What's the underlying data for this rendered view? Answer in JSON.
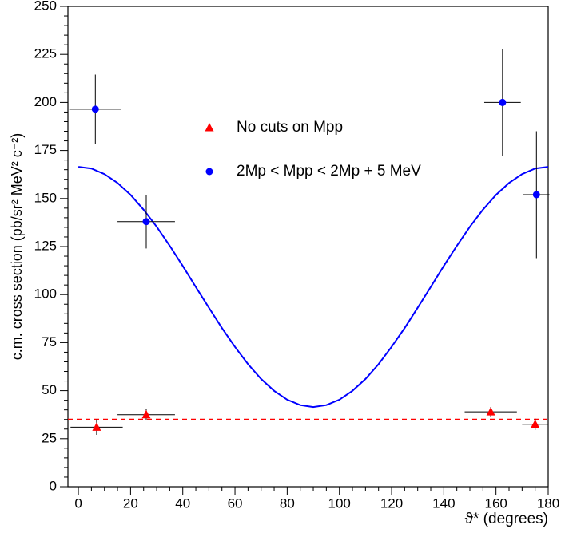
{
  "chart_data": {
    "type": "scatter",
    "xlabel": "ϑ* (degrees)",
    "ylabel": "c.m. cross section (pb/sr² MeV² c⁻²)",
    "xlim": [
      -4,
      180
    ],
    "ylim": [
      0,
      250
    ],
    "xticks": [
      0,
      20,
      40,
      60,
      80,
      100,
      120,
      140,
      160,
      180
    ],
    "yticks": [
      0,
      25,
      50,
      75,
      100,
      125,
      150,
      175,
      200,
      225,
      250
    ],
    "series": [
      {
        "name": "No cuts on Mpp",
        "color": "#ff0000",
        "marker": "triangle",
        "x": [
          7,
          26,
          158,
          175
        ],
        "values": [
          31,
          37.5,
          39,
          32.5
        ],
        "xerr": [
          10,
          11,
          10,
          5
        ],
        "yerr": [
          4,
          3,
          2.5,
          3
        ]
      },
      {
        "name": "2Mp < Mpp < 2Mp + 5 MeV",
        "color": "#0000ff",
        "marker": "circle",
        "x": [
          6.5,
          26,
          162.5,
          175.5
        ],
        "values": [
          196.5,
          138,
          200,
          152
        ],
        "xerr": [
          10,
          11,
          7,
          5
        ],
        "yerr": [
          18,
          14,
          28,
          33
        ]
      }
    ],
    "curves": [
      {
        "color": "#0000ff",
        "style": "solid",
        "x": [
          0,
          5,
          10,
          15,
          20,
          25,
          30,
          35,
          40,
          45,
          50,
          55,
          60,
          65,
          70,
          75,
          80,
          85,
          90,
          95,
          100,
          105,
          110,
          115,
          120,
          125,
          130,
          135,
          140,
          145,
          150,
          155,
          160,
          165,
          170,
          175,
          180
        ],
        "values": [
          166.5,
          165.6,
          162.7,
          158.1,
          151.9,
          144.2,
          135.3,
          125.4,
          114.9,
          104.0,
          93.2,
          82.6,
          72.8,
          63.8,
          56.1,
          49.9,
          45.3,
          42.5,
          41.5,
          42.5,
          45.3,
          49.9,
          56.1,
          63.8,
          72.8,
          82.6,
          93.2,
          104.0,
          114.9,
          125.4,
          135.3,
          144.2,
          151.9,
          158.1,
          162.7,
          165.6,
          166.5
        ]
      },
      {
        "color": "#ff0000",
        "style": "dashed",
        "x": [
          -4,
          180
        ],
        "values": [
          35,
          35
        ]
      }
    ]
  }
}
